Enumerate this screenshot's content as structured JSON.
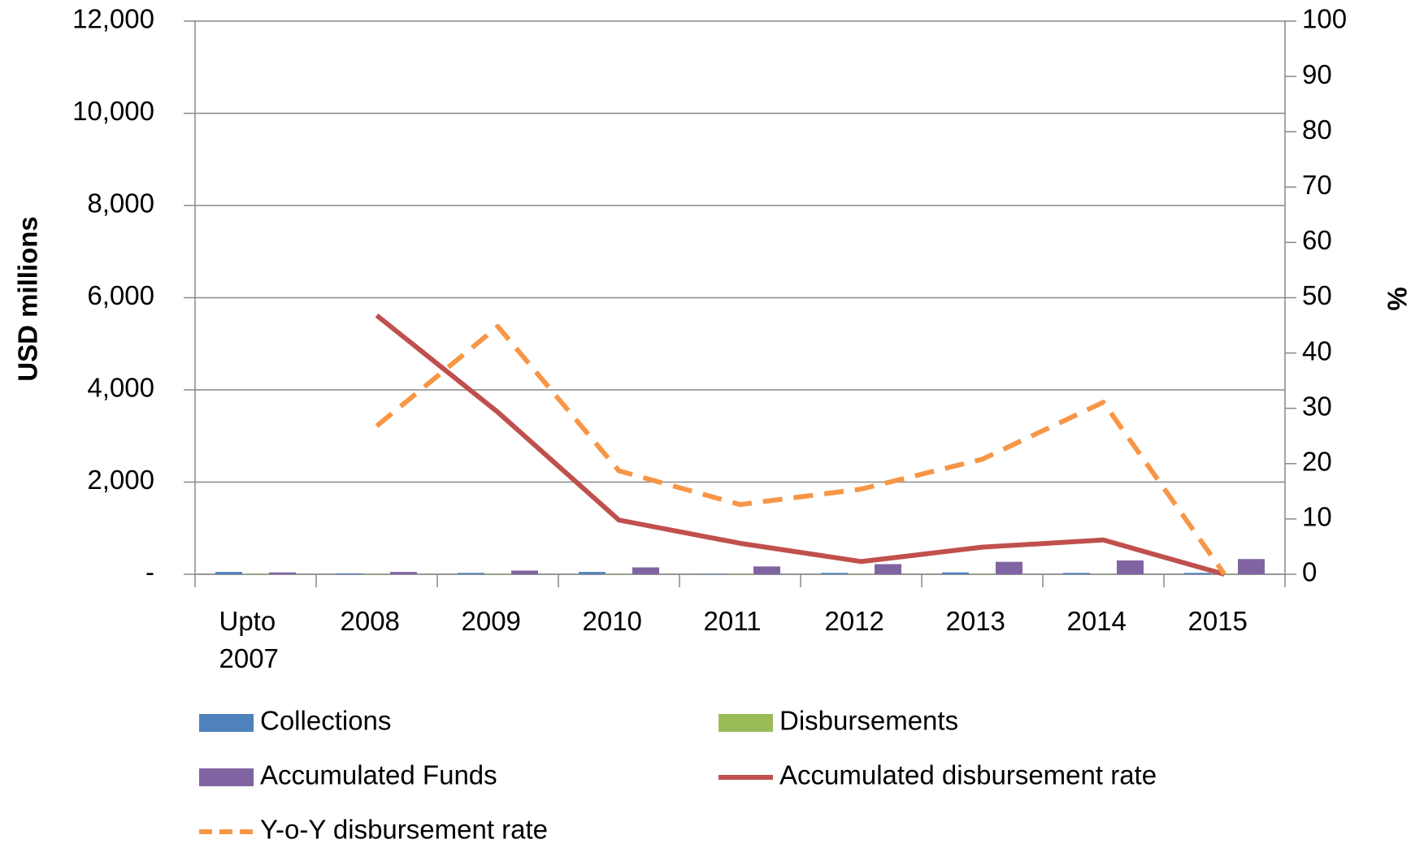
{
  "chart_data": {
    "type": "bar",
    "categories": [
      "Upto 2007",
      "2008",
      "2009",
      "2010",
      "2011",
      "2012",
      "2013",
      "2014",
      "2015"
    ],
    "y_label": "USD millions",
    "y2_label": "%",
    "ylim": [
      0,
      12000
    ],
    "yticks": [
      {
        "value": 0,
        "label": "-"
      },
      {
        "value": 2000,
        "label": "2,000"
      },
      {
        "value": 4000,
        "label": "4,000"
      },
      {
        "value": 6000,
        "label": "6,000"
      },
      {
        "value": 8000,
        "label": "8,000"
      },
      {
        "value": 10000,
        "label": "10,000"
      },
      {
        "value": 12000,
        "label": "12,000"
      }
    ],
    "y2lim": [
      0,
      100
    ],
    "y2ticks": [
      0,
      10,
      20,
      30,
      40,
      50,
      60,
      70,
      80,
      90,
      100
    ],
    "grid": true,
    "series": [
      {
        "name": "Collections",
        "type": "bar",
        "color": "#4f81bd",
        "values": [
          50,
          20,
          30,
          50,
          10,
          30,
          40,
          30,
          30
        ]
      },
      {
        "name": "Disbursements",
        "type": "bar",
        "color": "#9bbb59",
        "values": [
          10,
          5,
          10,
          10,
          5,
          5,
          5,
          5,
          5
        ]
      },
      {
        "name": "Accumulated Funds",
        "type": "bar",
        "color": "#8064a2",
        "values": [
          40,
          50,
          80,
          150,
          170,
          220,
          270,
          300,
          330
        ]
      },
      {
        "name": "Accumulated disbursement rate",
        "type": "line",
        "axis": "y2",
        "color": "#c0504d",
        "values": [
          null,
          46.8,
          29.3,
          9.8,
          5.6,
          2.3,
          4.9,
          6.2,
          0
        ]
      },
      {
        "name": "Y-o-Y disbursement rate",
        "type": "line",
        "axis": "y2",
        "dashed": true,
        "color": "#f79646",
        "values": [
          null,
          26.8,
          44.8,
          18.7,
          12.6,
          15.4,
          20.8,
          31.1,
          0
        ]
      }
    ]
  }
}
